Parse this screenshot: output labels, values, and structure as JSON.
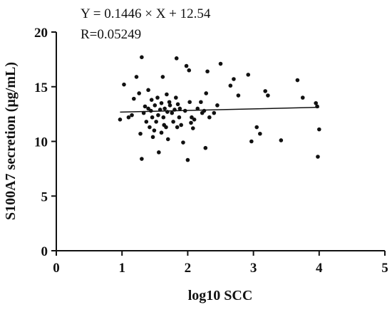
{
  "chart_data": {
    "type": "scatter",
    "annotations": [
      "Y = 0.1446 × X + 12.54",
      "R=0.05249"
    ],
    "xlabel": "log10 SCC",
    "ylabel": "S100A7 secretion (μg/mL)",
    "xlim": [
      0,
      5
    ],
    "ylim": [
      0,
      20
    ],
    "xticks": [
      "0",
      "1",
      "2",
      "3",
      "4",
      "5"
    ],
    "yticks": [
      "0",
      "5",
      "10",
      "15",
      "20"
    ],
    "grid": false,
    "regression": {
      "slope": 0.1446,
      "intercept": 12.54,
      "x_range": [
        0.97,
        4.0
      ]
    },
    "colors": {
      "points": "#111111",
      "line": "#111111",
      "axes": "#111111"
    },
    "points": [
      [
        0.97,
        12.0
      ],
      [
        1.03,
        15.2
      ],
      [
        1.1,
        12.2
      ],
      [
        1.15,
        12.4
      ],
      [
        1.18,
        13.9
      ],
      [
        1.22,
        15.9
      ],
      [
        1.26,
        14.4
      ],
      [
        1.28,
        10.7
      ],
      [
        1.3,
        17.7
      ],
      [
        1.3,
        8.4
      ],
      [
        1.33,
        12.6
      ],
      [
        1.35,
        13.2
      ],
      [
        1.37,
        11.8
      ],
      [
        1.4,
        14.7
      ],
      [
        1.4,
        13.0
      ],
      [
        1.42,
        11.3
      ],
      [
        1.44,
        12.8
      ],
      [
        1.45,
        13.8
      ],
      [
        1.46,
        12.2
      ],
      [
        1.47,
        10.4
      ],
      [
        1.49,
        11.0
      ],
      [
        1.5,
        13.3
      ],
      [
        1.52,
        11.8
      ],
      [
        1.54,
        14.0
      ],
      [
        1.55,
        12.4
      ],
      [
        1.56,
        9.0
      ],
      [
        1.58,
        12.9
      ],
      [
        1.6,
        10.8
      ],
      [
        1.6,
        13.5
      ],
      [
        1.62,
        15.9
      ],
      [
        1.63,
        12.2
      ],
      [
        1.64,
        11.5
      ],
      [
        1.65,
        13.0
      ],
      [
        1.67,
        11.3
      ],
      [
        1.68,
        14.3
      ],
      [
        1.69,
        12.7
      ],
      [
        1.7,
        10.2
      ],
      [
        1.72,
        13.6
      ],
      [
        1.73,
        13.3
      ],
      [
        1.76,
        12.6
      ],
      [
        1.78,
        11.8
      ],
      [
        1.8,
        12.9
      ],
      [
        1.82,
        14.0
      ],
      [
        1.83,
        17.6
      ],
      [
        1.84,
        11.3
      ],
      [
        1.85,
        13.4
      ],
      [
        1.87,
        12.2
      ],
      [
        1.88,
        13.0
      ],
      [
        1.9,
        11.5
      ],
      [
        1.93,
        9.9
      ],
      [
        1.96,
        12.8
      ],
      [
        1.98,
        16.9
      ],
      [
        2.0,
        8.3
      ],
      [
        2.02,
        16.5
      ],
      [
        2.03,
        13.6
      ],
      [
        2.05,
        11.7
      ],
      [
        2.06,
        12.2
      ],
      [
        2.08,
        11.2
      ],
      [
        2.1,
        12.0
      ],
      [
        2.15,
        13.0
      ],
      [
        2.2,
        13.6
      ],
      [
        2.22,
        12.6
      ],
      [
        2.25,
        12.8
      ],
      [
        2.27,
        9.4
      ],
      [
        2.28,
        14.4
      ],
      [
        2.3,
        16.4
      ],
      [
        2.33,
        12.2
      ],
      [
        2.4,
        12.6
      ],
      [
        2.45,
        13.3
      ],
      [
        2.5,
        17.1
      ],
      [
        2.65,
        15.1
      ],
      [
        2.7,
        15.7
      ],
      [
        2.77,
        14.2
      ],
      [
        2.92,
        16.1
      ],
      [
        2.97,
        10.0
      ],
      [
        3.05,
        11.3
      ],
      [
        3.1,
        10.7
      ],
      [
        3.18,
        14.6
      ],
      [
        3.22,
        14.2
      ],
      [
        3.42,
        10.1
      ],
      [
        3.67,
        15.6
      ],
      [
        3.75,
        14.0
      ],
      [
        3.95,
        13.5
      ],
      [
        3.97,
        13.2
      ],
      [
        3.98,
        8.6
      ],
      [
        4.0,
        11.1
      ]
    ]
  }
}
